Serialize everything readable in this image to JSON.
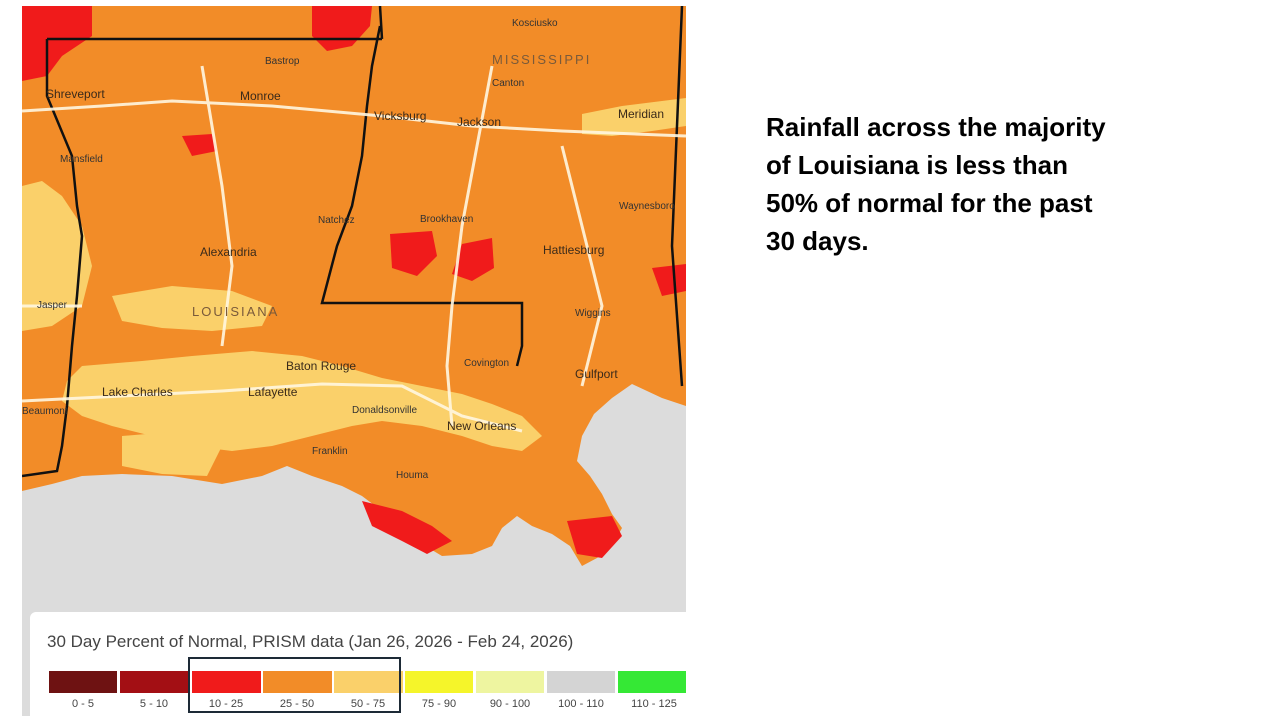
{
  "callout": {
    "lines": [
      "Rainfall across the majority",
      "of Louisiana is less than",
      "50% of normal for the past",
      "30 days."
    ]
  },
  "map": {
    "states": [
      "MISSISSIPPI",
      "LOUISIANA"
    ],
    "cities": [
      "Kosciusko",
      "Bastrop",
      "Canton",
      "Shreveport",
      "Monroe",
      "Vicksburg",
      "Jackson",
      "Meridian",
      "Mansfield",
      "Natchez",
      "Brookhaven",
      "Waynesboro",
      "Alexandria",
      "Hattiesburg",
      "Jasper",
      "Wiggins",
      "Covington",
      "Baton Rouge",
      "Gulfport",
      "Lake Charles",
      "Lafayette",
      "Beaumont",
      "Donaldsonville",
      "New Orleans",
      "Franklin",
      "Houma"
    ],
    "colors": {
      "c0_5": "#6e1212",
      "c5_10": "#a30f14",
      "c10_25": "#f01b1b",
      "c25_50": "#f28c28",
      "c50_75": "#fad06a",
      "c75_90": "#f5f52a",
      "c90_100": "#eef5a0",
      "c100_110": "#d4d4d4",
      "c110_125": "#35e835",
      "water": "#dcdcdc"
    }
  },
  "legend": {
    "title": "30 Day Percent of Normal, PRISM data (Jan 26, 2026 - Feb 24, 2026)",
    "highlighted": [
      "10 - 25",
      "25 - 50",
      "50 - 75"
    ],
    "items": [
      {
        "range": "0 - 5",
        "color": "#6e1212"
      },
      {
        "range": "5 - 10",
        "color": "#a30f14"
      },
      {
        "range": "10 - 25",
        "color": "#f01b1b"
      },
      {
        "range": "25 - 50",
        "color": "#f28c28"
      },
      {
        "range": "50 - 75",
        "color": "#fad06a"
      },
      {
        "range": "75 - 90",
        "color": "#f5f52a"
      },
      {
        "range": "90 - 100",
        "color": "#eef5a0"
      },
      {
        "range": "100 - 110",
        "color": "#d4d4d4"
      },
      {
        "range": "110 - 125",
        "color": "#35e835"
      }
    ]
  }
}
